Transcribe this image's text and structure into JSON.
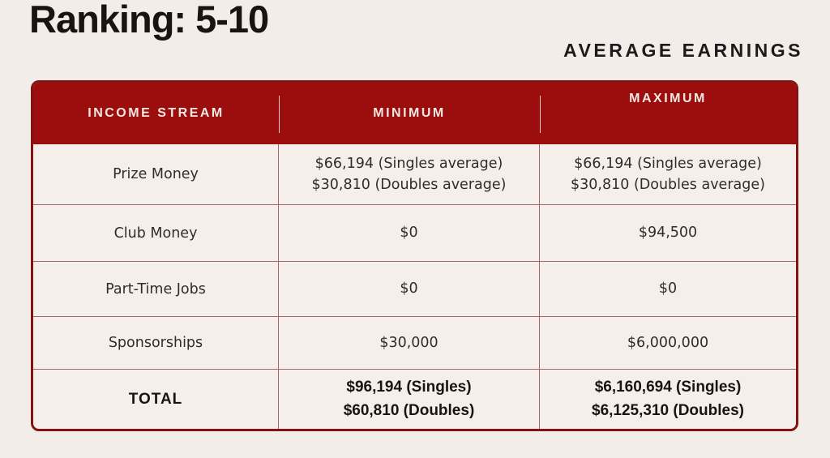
{
  "header": {
    "title": "Ranking: 5-10",
    "subtitle": "AVERAGE EARNINGS"
  },
  "colors": {
    "page_background": "#F3EDEA",
    "header_red": "#9C0D0D",
    "table_border": "#841414",
    "header_text": "#F6E9E2",
    "body_text": "#332B28"
  },
  "table": {
    "columns": [
      "INCOME STREAM",
      "MINIMUM",
      "MAXIMUM"
    ],
    "rows": [
      {
        "label": "Prize Money",
        "min": [
          "$66,194 (Singles average)",
          "$30,810 (Doubles average)"
        ],
        "max": [
          "$66,194 (Singles average)",
          "$30,810 (Doubles average)"
        ]
      },
      {
        "label": "Club Money",
        "min": [
          "$0"
        ],
        "max": [
          "$94,500"
        ]
      },
      {
        "label": "Part-Time Jobs",
        "min": [
          "$0"
        ],
        "max": [
          "$0"
        ]
      },
      {
        "label": "Sponsorships",
        "min": [
          "$30,000"
        ],
        "max": [
          "$6,000,000"
        ]
      },
      {
        "label": "TOTAL",
        "min": [
          "$96,194 (Singles)",
          "$60,810 (Doubles)"
        ],
        "max": [
          "$6,160,694 (Singles)",
          "$6,125,310 (Doubles)"
        ]
      }
    ]
  }
}
